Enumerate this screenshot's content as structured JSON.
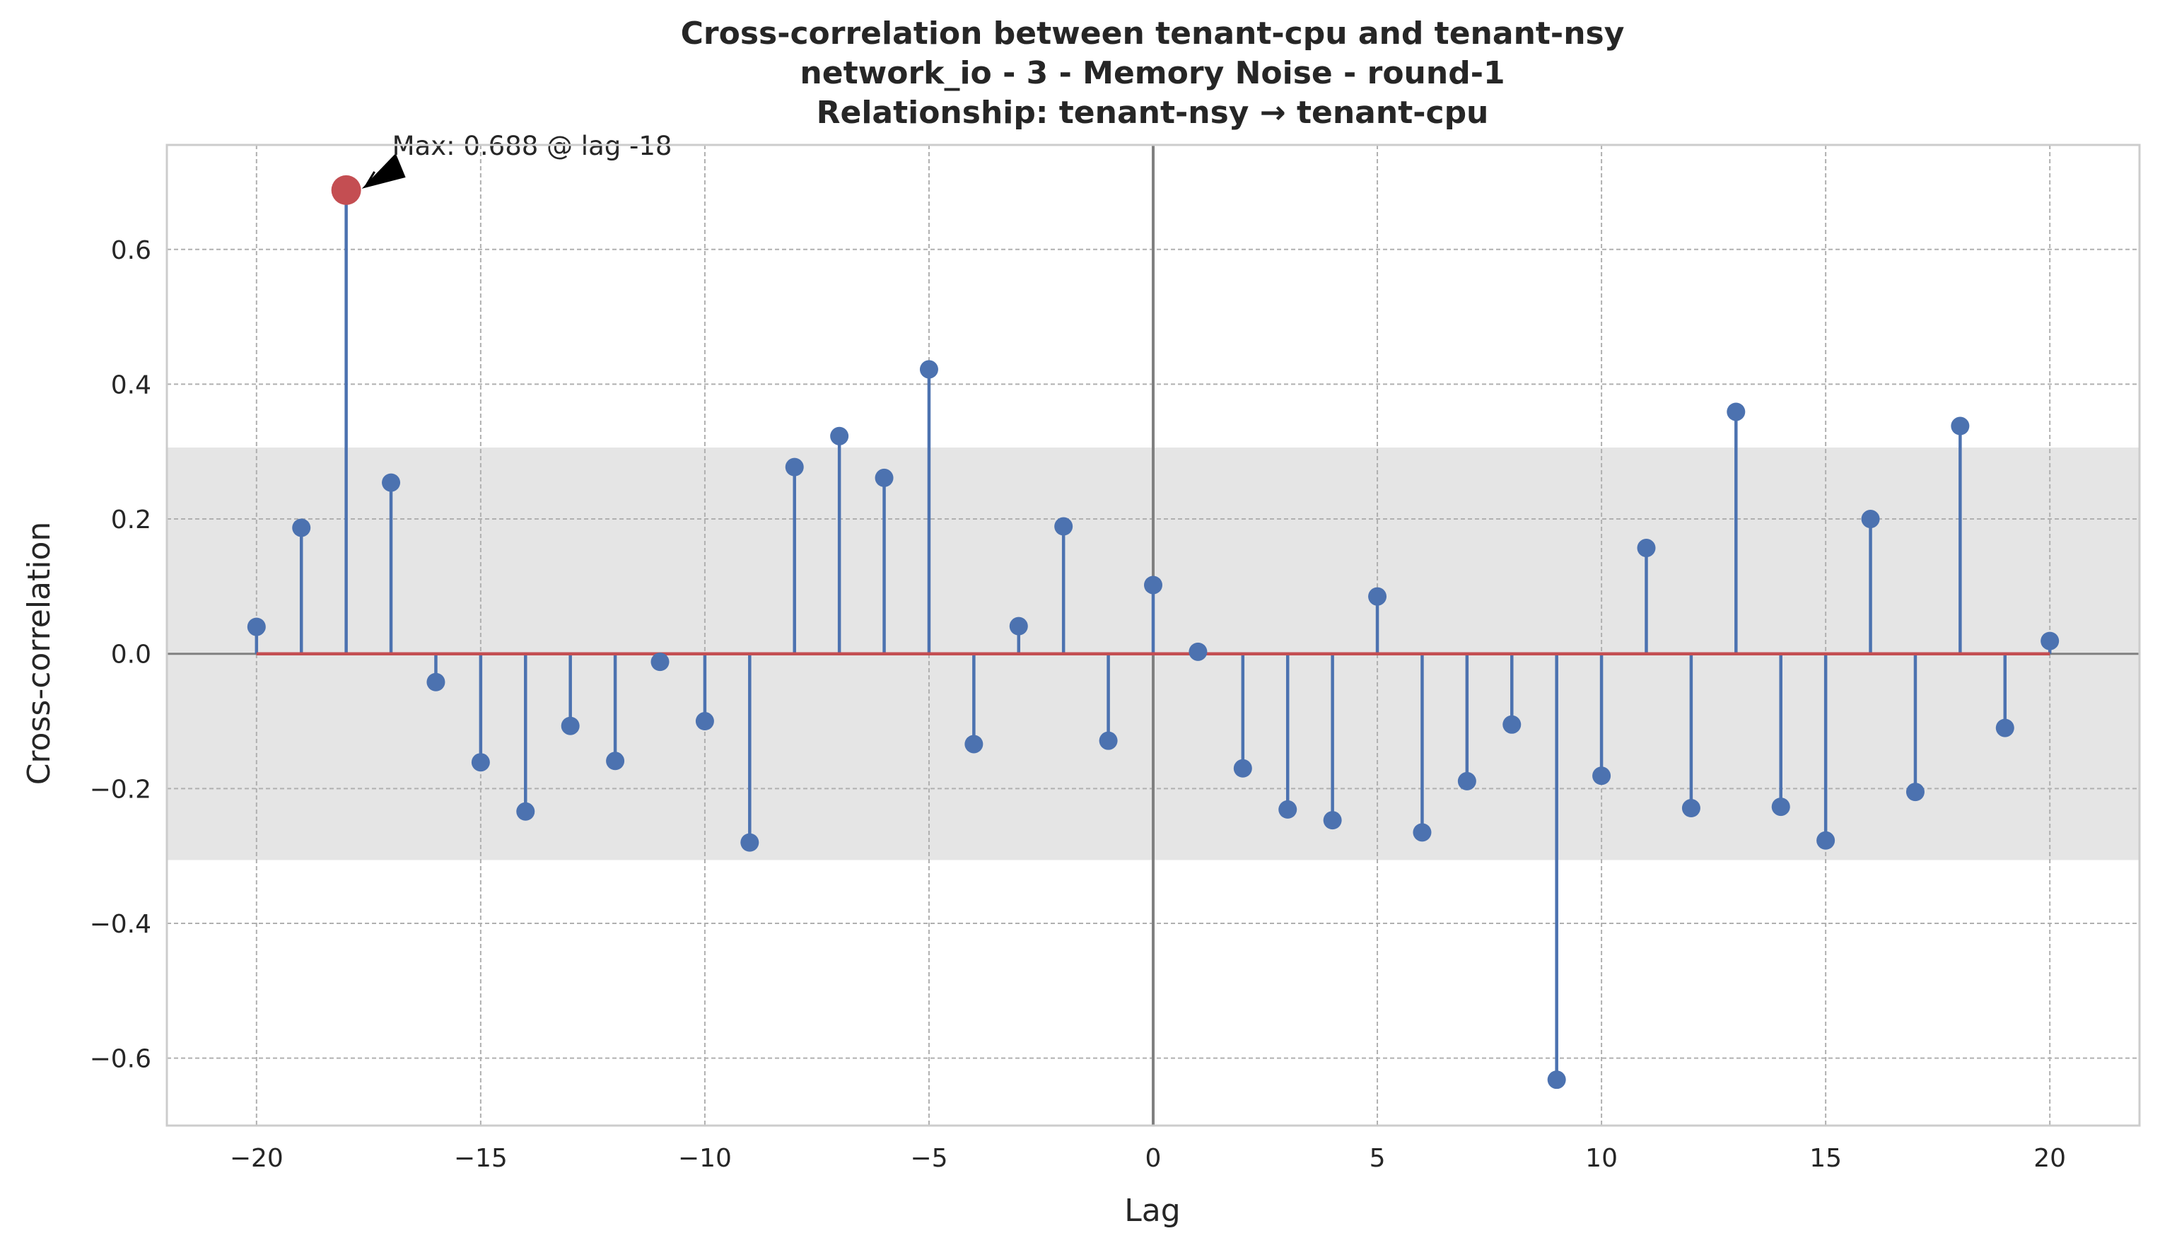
{
  "chart_data": {
    "type": "stem",
    "title_lines": [
      "Cross-correlation between tenant-cpu and tenant-nsy",
      "network_io - 3 - Memory Noise - round-1",
      "Relationship: tenant-nsy → tenant-cpu"
    ],
    "xlabel": "Lag",
    "ylabel": "Cross-correlation",
    "xlim": [
      -22,
      22
    ],
    "ylim": [
      -0.7,
      0.755
    ],
    "x_ticks": [
      -20,
      -15,
      -10,
      -5,
      0,
      5,
      10,
      15,
      20
    ],
    "y_ticks": [
      -0.6,
      -0.4,
      -0.2,
      0.0,
      0.2,
      0.4,
      0.6
    ],
    "x": [
      -20,
      -19,
      -18,
      -17,
      -16,
      -15,
      -14,
      -13,
      -12,
      -11,
      -10,
      -9,
      -8,
      -7,
      -6,
      -5,
      -4,
      -3,
      -2,
      -1,
      0,
      1,
      2,
      3,
      4,
      5,
      6,
      7,
      8,
      9,
      10,
      11,
      12,
      13,
      14,
      15,
      16,
      17,
      18,
      19,
      20
    ],
    "values": [
      0.04,
      0.187,
      0.688,
      0.254,
      -0.042,
      -0.161,
      -0.234,
      -0.107,
      -0.159,
      -0.012,
      -0.1,
      -0.28,
      0.277,
      0.323,
      0.261,
      0.422,
      -0.134,
      0.041,
      0.189,
      -0.129,
      0.102,
      0.003,
      -0.17,
      -0.231,
      -0.247,
      0.085,
      -0.265,
      -0.189,
      -0.105,
      -0.632,
      -0.181,
      0.157,
      -0.229,
      0.359,
      -0.227,
      -0.277,
      0.2,
      -0.205,
      0.338,
      -0.11,
      0.019
    ],
    "confidence_band": [
      -0.306,
      0.306
    ],
    "max_point": {
      "lag": -18,
      "value": 0.688
    },
    "annotation": "Max: 0.688 @ lag -18",
    "grid": true,
    "colors": {
      "stem": "#4c72b0",
      "baseline": "#c44e52",
      "max_marker": "#c44e52",
      "band": "#e5e5e5",
      "grid": "#b0b0b0",
      "zero_line": "#808080",
      "frame": "#cccccc"
    }
  }
}
